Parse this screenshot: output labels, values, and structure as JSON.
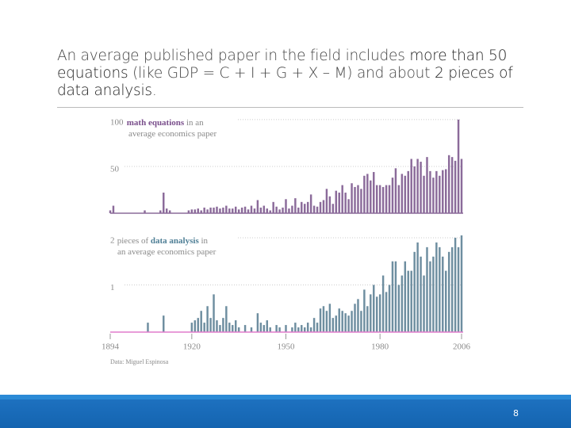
{
  "slide": {
    "heading": [
      [
        {
          "text": "An average published paper in the field includes "
        },
        {
          "text": "more than 50",
          "strong": true
        }
      ],
      [
        {
          "text": "equations",
          "strong": true
        },
        {
          "text": " (like GDP = C + I + G + X – M) and about "
        },
        {
          "text": "2 pieces of",
          "strong": true
        }
      ],
      [
        {
          "text": "data analysis",
          "strong": true
        },
        {
          "text": "."
        }
      ]
    ],
    "page_number": "8"
  },
  "chart_data": [
    {
      "type": "bar",
      "color": "#8b6b9a",
      "baseline_color": "#8b6b9a",
      "highlight_color": "#7a4f8c",
      "annotation": [
        [
          {
            "text": " math equations",
            "strong": true
          },
          {
            "text": " in an"
          }
        ],
        [
          {
            "text": "average economics paper"
          }
        ]
      ],
      "xlim": [
        1894,
        2006
      ],
      "ylim": [
        0,
        105
      ],
      "yticks": [
        50,
        100
      ],
      "x": [
        1894,
        1895,
        1905,
        1910,
        1911,
        1912,
        1913,
        1919,
        1920,
        1921,
        1922,
        1923,
        1924,
        1925,
        1926,
        1927,
        1928,
        1929,
        1930,
        1931,
        1932,
        1933,
        1934,
        1935,
        1936,
        1937,
        1938,
        1939,
        1940,
        1941,
        1942,
        1943,
        1944,
        1945,
        1946,
        1947,
        1948,
        1949,
        1950,
        1951,
        1952,
        1953,
        1954,
        1955,
        1956,
        1957,
        1958,
        1959,
        1960,
        1961,
        1962,
        1963,
        1964,
        1965,
        1966,
        1967,
        1968,
        1969,
        1970,
        1971,
        1972,
        1973,
        1974,
        1975,
        1976,
        1977,
        1978,
        1979,
        1980,
        1981,
        1982,
        1983,
        1984,
        1985,
        1986,
        1987,
        1988,
        1989,
        1990,
        1991,
        1992,
        1993,
        1994,
        1995,
        1996,
        1997,
        1998,
        1999,
        2000,
        2001,
        2002,
        2003,
        2004,
        2005,
        2006
      ],
      "values": [
        3,
        8,
        3,
        3,
        22,
        5,
        3,
        3,
        4,
        4,
        5,
        3,
        6,
        4,
        6,
        6,
        7,
        5,
        6,
        8,
        5,
        5,
        7,
        4,
        6,
        7,
        4,
        8,
        5,
        14,
        6,
        8,
        5,
        3,
        12,
        7,
        4,
        6,
        15,
        5,
        8,
        16,
        6,
        12,
        10,
        12,
        20,
        8,
        7,
        12,
        14,
        26,
        18,
        10,
        24,
        22,
        30,
        22,
        15,
        32,
        28,
        30,
        26,
        40,
        42,
        35,
        44,
        30,
        30,
        28,
        30,
        30,
        38,
        48,
        30,
        42,
        40,
        45,
        58,
        50,
        58,
        55,
        40,
        60,
        45,
        38,
        45,
        40,
        46,
        47,
        62,
        60,
        56,
        100,
        58
      ]
    },
    {
      "type": "bar",
      "color": "#6e8ea0",
      "baseline_color": "#e07ccc",
      "highlight_color": "#4f7f96",
      "annotation": [
        [
          {
            "text": " pieces of "
          },
          {
            "text": "data analysis",
            "strong": true
          },
          {
            "text": " in"
          }
        ],
        [
          {
            "text": "an average economics paper"
          }
        ]
      ],
      "xlim": [
        1894,
        2006
      ],
      "ylim": [
        0,
        2.1
      ],
      "yticks": [
        1,
        2
      ],
      "xticks": [
        1894,
        1920,
        1950,
        1980,
        2006
      ],
      "source": "Data: Miguel Espinosa",
      "x": [
        1906,
        1911,
        1920,
        1921,
        1922,
        1923,
        1924,
        1925,
        1926,
        1927,
        1928,
        1929,
        1930,
        1931,
        1932,
        1933,
        1934,
        1935,
        1937,
        1939,
        1941,
        1942,
        1943,
        1944,
        1945,
        1947,
        1948,
        1950,
        1952,
        1953,
        1954,
        1955,
        1956,
        1957,
        1958,
        1959,
        1960,
        1961,
        1962,
        1963,
        1964,
        1965,
        1966,
        1967,
        1968,
        1969,
        1970,
        1971,
        1972,
        1973,
        1974,
        1975,
        1976,
        1977,
        1978,
        1979,
        1980,
        1981,
        1982,
        1983,
        1984,
        1985,
        1986,
        1987,
        1988,
        1989,
        1990,
        1991,
        1992,
        1993,
        1994,
        1995,
        1996,
        1997,
        1998,
        1999,
        2000,
        2001,
        2002,
        2003,
        2004,
        2005,
        2006
      ],
      "values": [
        0.2,
        0.35,
        0.2,
        0.25,
        0.3,
        0.45,
        0.2,
        0.55,
        0.3,
        0.8,
        0.25,
        0.15,
        0.3,
        0.55,
        0.2,
        0.15,
        0.25,
        0.1,
        0.15,
        0.1,
        0.4,
        0.2,
        0.15,
        0.25,
        0.1,
        0.15,
        0.1,
        0.15,
        0.1,
        0.2,
        0.1,
        0.15,
        0.1,
        0.2,
        0.1,
        0.3,
        0.2,
        0.5,
        0.55,
        0.45,
        0.6,
        0.3,
        0.35,
        0.5,
        0.45,
        0.4,
        0.35,
        0.45,
        0.6,
        0.7,
        0.45,
        0.9,
        0.55,
        0.8,
        1.0,
        0.75,
        0.8,
        1.2,
        0.85,
        1.0,
        1.5,
        1.5,
        1.0,
        1.2,
        1.5,
        1.3,
        1.3,
        1.7,
        1.9,
        1.6,
        1.2,
        1.8,
        1.5,
        1.6,
        1.9,
        1.8,
        1.6,
        1.3,
        1.7,
        1.8,
        2.0,
        1.8,
        2.05
      ]
    }
  ]
}
